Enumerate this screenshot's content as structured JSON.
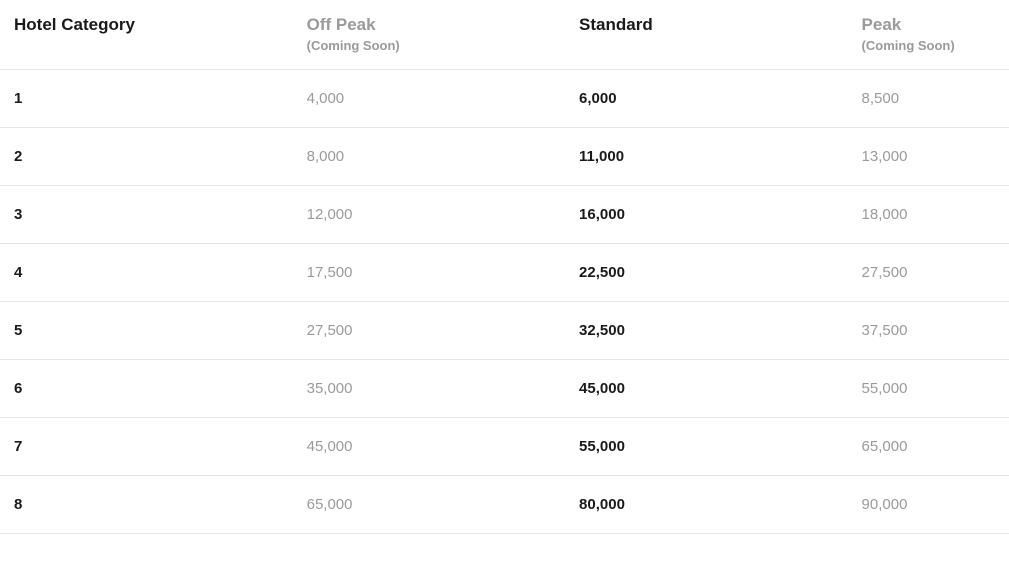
{
  "table": {
    "columns": [
      {
        "key": "category",
        "title": "Hotel Category",
        "subtitle": null,
        "emphasis": "strong"
      },
      {
        "key": "offpeak",
        "title": "Off Peak",
        "subtitle": "(Coming Soon)",
        "emphasis": "muted"
      },
      {
        "key": "standard",
        "title": "Standard",
        "subtitle": null,
        "emphasis": "strong"
      },
      {
        "key": "peak",
        "title": "Peak",
        "subtitle": "(Coming Soon)",
        "emphasis": "muted"
      }
    ],
    "rows": [
      {
        "category": "1",
        "offpeak": "4,000",
        "standard": "6,000",
        "peak": "8,500"
      },
      {
        "category": "2",
        "offpeak": "8,000",
        "standard": "11,000",
        "peak": "13,000"
      },
      {
        "category": "3",
        "offpeak": "12,000",
        "standard": "16,000",
        "peak": "18,000"
      },
      {
        "category": "4",
        "offpeak": "17,500",
        "standard": "22,500",
        "peak": "27,500"
      },
      {
        "category": "5",
        "offpeak": "27,500",
        "standard": "32,500",
        "peak": "37,500"
      },
      {
        "category": "6",
        "offpeak": "35,000",
        "standard": "45,000",
        "peak": "55,000"
      },
      {
        "category": "7",
        "offpeak": "45,000",
        "standard": "55,000",
        "peak": "65,000"
      },
      {
        "category": "8",
        "offpeak": "65,000",
        "standard": "80,000",
        "peak": "90,000"
      }
    ],
    "styling": {
      "background_color": "#ffffff",
      "border_color": "#e5e5e5",
      "text_strong_color": "#1a1a1a",
      "text_muted_color": "#9a9a9a",
      "header_title_fontsize": 17,
      "header_subtitle_fontsize": 13,
      "cell_fontsize": 15,
      "row_padding_v": 20,
      "column_widths_pct": [
        29,
        27,
        28,
        16
      ]
    }
  }
}
